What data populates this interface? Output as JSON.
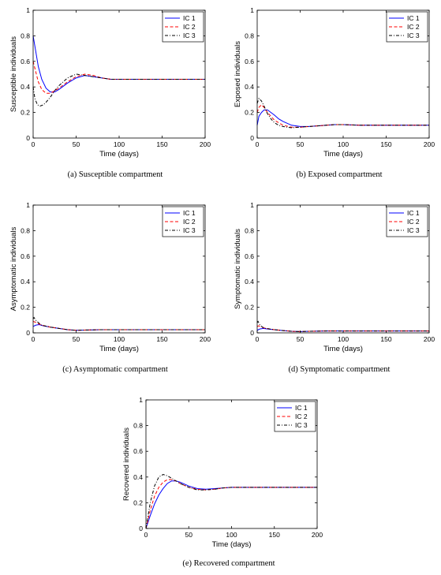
{
  "colors": {
    "ic1": "#0000ff",
    "ic2": "#ff0000",
    "ic3": "#000000",
    "axis": "#000000"
  },
  "chart_data": [
    {
      "type": "line",
      "caption": "(a)  Susceptible compartment",
      "xlabel": "Time (days)",
      "ylabel": "Susceptible individuals",
      "xlim": [
        0,
        200
      ],
      "ylim": [
        0,
        1
      ],
      "xticks": [
        "0",
        "50",
        "100",
        "150",
        "200"
      ],
      "yticks": [
        "0",
        "0.2",
        "0.4",
        "0.6",
        "0.8",
        "1"
      ],
      "legend_position": "top-right",
      "grid": false,
      "series": [
        {
          "name": "IC 1",
          "style": "solid",
          "x": [
            0,
            3,
            6,
            10,
            15,
            20,
            25,
            30,
            40,
            50,
            60,
            70,
            80,
            90,
            100,
            120,
            150,
            200
          ],
          "y": [
            0.8,
            0.68,
            0.56,
            0.46,
            0.39,
            0.36,
            0.36,
            0.38,
            0.43,
            0.47,
            0.49,
            0.48,
            0.47,
            0.46,
            0.46,
            0.46,
            0.46,
            0.46
          ]
        },
        {
          "name": "IC 2",
          "style": "dashed",
          "x": [
            0,
            3,
            6,
            10,
            15,
            20,
            25,
            30,
            40,
            50,
            60,
            70,
            80,
            90,
            100,
            120,
            150,
            200
          ],
          "y": [
            0.6,
            0.52,
            0.44,
            0.38,
            0.35,
            0.35,
            0.37,
            0.39,
            0.44,
            0.48,
            0.5,
            0.49,
            0.47,
            0.46,
            0.46,
            0.46,
            0.46,
            0.46
          ]
        },
        {
          "name": "IC 3",
          "style": "dashdot",
          "x": [
            0,
            2,
            5,
            8,
            12,
            15,
            20,
            25,
            30,
            40,
            50,
            60,
            70,
            80,
            90,
            100,
            120,
            150,
            200
          ],
          "y": [
            0.4,
            0.31,
            0.26,
            0.25,
            0.26,
            0.28,
            0.32,
            0.37,
            0.41,
            0.47,
            0.5,
            0.49,
            0.48,
            0.47,
            0.46,
            0.46,
            0.46,
            0.46,
            0.46
          ]
        }
      ]
    },
    {
      "type": "line",
      "caption": "(b)  Exposed compartment",
      "xlabel": "Time (days)",
      "ylabel": "Exposed individuals",
      "xlim": [
        0,
        200
      ],
      "ylim": [
        0,
        1
      ],
      "xticks": [
        "0",
        "50",
        "100",
        "150",
        "200"
      ],
      "yticks": [
        "0",
        "0.2",
        "0.4",
        "0.6",
        "0.8",
        "1"
      ],
      "legend_position": "top-right",
      "grid": false,
      "series": [
        {
          "name": "IC 1",
          "style": "solid",
          "x": [
            0,
            2,
            5,
            8,
            12,
            16,
            20,
            25,
            30,
            40,
            50,
            60,
            70,
            80,
            90,
            100,
            120,
            150,
            200
          ],
          "y": [
            0.1,
            0.17,
            0.2,
            0.22,
            0.22,
            0.2,
            0.18,
            0.15,
            0.13,
            0.1,
            0.09,
            0.09,
            0.095,
            0.1,
            0.105,
            0.105,
            0.1,
            0.1,
            0.1
          ]
        },
        {
          "name": "IC 2",
          "style": "dashed",
          "x": [
            0,
            2,
            5,
            8,
            12,
            16,
            20,
            25,
            30,
            40,
            50,
            60,
            70,
            80,
            90,
            100,
            120,
            150,
            200
          ],
          "y": [
            0.2,
            0.24,
            0.26,
            0.24,
            0.2,
            0.17,
            0.14,
            0.12,
            0.1,
            0.085,
            0.085,
            0.09,
            0.095,
            0.1,
            0.105,
            0.105,
            0.1,
            0.1,
            0.1
          ]
        },
        {
          "name": "IC 3",
          "style": "dashdot",
          "x": [
            0,
            2,
            5,
            8,
            12,
            16,
            20,
            25,
            30,
            40,
            50,
            60,
            70,
            80,
            90,
            100,
            120,
            150,
            200
          ],
          "y": [
            0.27,
            0.31,
            0.29,
            0.25,
            0.19,
            0.15,
            0.12,
            0.1,
            0.09,
            0.08,
            0.085,
            0.09,
            0.095,
            0.1,
            0.105,
            0.105,
            0.1,
            0.1,
            0.1
          ]
        }
      ]
    },
    {
      "type": "line",
      "caption": "(c)  Asymptomatic compartment",
      "xlabel": "Time (days)",
      "ylabel": "Asymptomatic individuals",
      "xlim": [
        0,
        200
      ],
      "ylim": [
        0,
        1
      ],
      "xticks": [
        "0",
        "50",
        "100",
        "150",
        "200"
      ],
      "yticks": [
        "0",
        "0.2",
        "0.4",
        "0.6",
        "0.8",
        "1"
      ],
      "legend_position": "top-right",
      "grid": false,
      "series": [
        {
          "name": "IC 1",
          "style": "solid",
          "x": [
            0,
            3,
            7,
            12,
            20,
            30,
            40,
            50,
            60,
            80,
            100,
            150,
            200
          ],
          "y": [
            0.05,
            0.06,
            0.065,
            0.055,
            0.045,
            0.035,
            0.025,
            0.02,
            0.022,
            0.025,
            0.025,
            0.025,
            0.025
          ]
        },
        {
          "name": "IC 2",
          "style": "dashed",
          "x": [
            0,
            2,
            5,
            10,
            20,
            30,
            40,
            50,
            60,
            80,
            100,
            150,
            200
          ],
          "y": [
            0.09,
            0.085,
            0.075,
            0.06,
            0.045,
            0.035,
            0.025,
            0.02,
            0.022,
            0.025,
            0.025,
            0.025,
            0.025
          ]
        },
        {
          "name": "IC 3",
          "style": "dashdot",
          "x": [
            0,
            1,
            3,
            6,
            10,
            20,
            30,
            40,
            50,
            60,
            80,
            100,
            150,
            200
          ],
          "y": [
            0.11,
            0.12,
            0.1,
            0.08,
            0.06,
            0.045,
            0.035,
            0.025,
            0.02,
            0.022,
            0.025,
            0.025,
            0.025,
            0.025
          ]
        }
      ]
    },
    {
      "type": "line",
      "caption": "(d)  Symptomatic compartment",
      "xlabel": "Time (days)",
      "ylabel": "Symptomatic individuals",
      "xlim": [
        0,
        200
      ],
      "ylim": [
        0,
        1
      ],
      "xticks": [
        "0",
        "50",
        "100",
        "150",
        "200"
      ],
      "yticks": [
        "0",
        "0.2",
        "0.4",
        "0.6",
        "0.8",
        "1"
      ],
      "legend_position": "top-right",
      "grid": false,
      "series": [
        {
          "name": "IC 1",
          "style": "solid",
          "x": [
            0,
            3,
            7,
            12,
            20,
            30,
            40,
            50,
            60,
            80,
            100,
            150,
            200
          ],
          "y": [
            0.02,
            0.03,
            0.035,
            0.03,
            0.025,
            0.018,
            0.012,
            0.01,
            0.012,
            0.015,
            0.015,
            0.015,
            0.015
          ]
        },
        {
          "name": "IC 2",
          "style": "dashed",
          "x": [
            0,
            2,
            5,
            10,
            20,
            30,
            40,
            50,
            60,
            80,
            100,
            150,
            200
          ],
          "y": [
            0.05,
            0.055,
            0.045,
            0.035,
            0.025,
            0.018,
            0.012,
            0.01,
            0.012,
            0.015,
            0.015,
            0.015,
            0.015
          ]
        },
        {
          "name": "IC 3",
          "style": "dashdot",
          "x": [
            0,
            1,
            3,
            6,
            10,
            20,
            30,
            40,
            50,
            60,
            80,
            100,
            150,
            200
          ],
          "y": [
            0.08,
            0.09,
            0.065,
            0.045,
            0.035,
            0.025,
            0.018,
            0.012,
            0.01,
            0.012,
            0.015,
            0.015,
            0.015,
            0.015
          ]
        }
      ]
    },
    {
      "type": "line",
      "caption": "(e)  Recovered compartment",
      "xlabel": "Time (days)",
      "ylabel": "Recovered individuals",
      "xlim": [
        0,
        200
      ],
      "ylim": [
        0,
        1
      ],
      "xticks": [
        "0",
        "50",
        "100",
        "150",
        "200"
      ],
      "yticks": [
        "0",
        "0.2",
        "0.4",
        "0.6",
        "0.8",
        "1"
      ],
      "legend_position": "top-right",
      "grid": false,
      "series": [
        {
          "name": "IC 1",
          "style": "solid",
          "x": [
            0,
            5,
            10,
            15,
            20,
            25,
            30,
            35,
            40,
            50,
            60,
            70,
            80,
            90,
            100,
            120,
            150,
            200
          ],
          "y": [
            0,
            0.1,
            0.19,
            0.26,
            0.31,
            0.35,
            0.37,
            0.37,
            0.36,
            0.33,
            0.31,
            0.305,
            0.31,
            0.315,
            0.32,
            0.32,
            0.32,
            0.32
          ]
        },
        {
          "name": "IC 2",
          "style": "dashed",
          "x": [
            0,
            5,
            10,
            15,
            20,
            25,
            30,
            35,
            40,
            50,
            60,
            70,
            80,
            90,
            100,
            120,
            150,
            200
          ],
          "y": [
            0,
            0.14,
            0.25,
            0.32,
            0.36,
            0.38,
            0.38,
            0.37,
            0.35,
            0.32,
            0.305,
            0.3,
            0.305,
            0.315,
            0.32,
            0.32,
            0.32,
            0.32
          ]
        },
        {
          "name": "IC 3",
          "style": "dashdot",
          "x": [
            0,
            5,
            10,
            15,
            20,
            25,
            30,
            35,
            40,
            50,
            60,
            70,
            80,
            90,
            100,
            120,
            150,
            200
          ],
          "y": [
            0,
            0.2,
            0.33,
            0.4,
            0.42,
            0.41,
            0.39,
            0.37,
            0.35,
            0.32,
            0.3,
            0.3,
            0.305,
            0.315,
            0.32,
            0.32,
            0.32,
            0.32
          ]
        }
      ]
    }
  ]
}
